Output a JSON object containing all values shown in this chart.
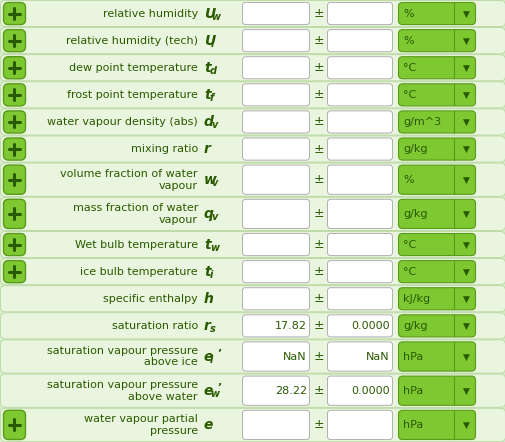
{
  "rows": [
    {
      "label": "relative humidity",
      "symbol": "U",
      "sub": "w",
      "prime": false,
      "val1": "",
      "val2": "",
      "unit": "%",
      "has_plus": true
    },
    {
      "label": "relative humidity (tech)",
      "symbol": "U",
      "sub": "i",
      "prime": false,
      "val1": "",
      "val2": "",
      "unit": "%",
      "has_plus": true
    },
    {
      "label": "dew point temperature",
      "symbol": "t",
      "sub": "d",
      "prime": false,
      "val1": "",
      "val2": "",
      "unit": "°C",
      "has_plus": true
    },
    {
      "label": "frost point temperature",
      "symbol": "t",
      "sub": "f",
      "prime": false,
      "val1": "",
      "val2": "",
      "unit": "°C",
      "has_plus": true
    },
    {
      "label": "water vapour density (abs)",
      "symbol": "d",
      "sub": "v",
      "prime": false,
      "val1": "",
      "val2": "",
      "unit": "g/m^3",
      "has_plus": true
    },
    {
      "label": "mixing ratio",
      "symbol": "r",
      "sub": "",
      "prime": false,
      "val1": "",
      "val2": "",
      "unit": "g/kg",
      "has_plus": true
    },
    {
      "label": "volume fraction of water\nvapour",
      "symbol": "w",
      "sub": "v",
      "prime": false,
      "val1": "",
      "val2": "",
      "unit": "%",
      "has_plus": true
    },
    {
      "label": "mass fraction of water\nvapour",
      "symbol": "q",
      "sub": "v",
      "prime": false,
      "val1": "",
      "val2": "",
      "unit": "g/kg",
      "has_plus": true
    },
    {
      "label": "Wet bulb temperature",
      "symbol": "t",
      "sub": "w",
      "prime": false,
      "val1": "",
      "val2": "",
      "unit": "°C",
      "has_plus": true
    },
    {
      "label": "ice bulb temperature",
      "symbol": "t",
      "sub": "i",
      "prime": false,
      "val1": "",
      "val2": "",
      "unit": "°C",
      "has_plus": true
    },
    {
      "label": "specific enthalpy",
      "symbol": "h",
      "sub": "",
      "prime": false,
      "val1": "",
      "val2": "",
      "unit": "kJ/kg",
      "has_plus": false
    },
    {
      "label": "saturation ratio",
      "symbol": "r",
      "sub": "s",
      "prime": false,
      "val1": "17.82",
      "val2": "0.0000",
      "unit": "g/kg",
      "has_plus": false
    },
    {
      "label": "saturation vapour pressure\nabove ice",
      "symbol": "e",
      "sub": "i",
      "prime": true,
      "val1": "NaN",
      "val2": "NaN",
      "unit": "hPa",
      "has_plus": false
    },
    {
      "label": "saturation vapour pressure\nabove water",
      "symbol": "e",
      "sub": "w",
      "prime": true,
      "val1": "28.22",
      "val2": "0.0000",
      "unit": "hPa",
      "has_plus": false
    },
    {
      "label": "water vapour partial\npressure",
      "symbol": "e",
      "sub": "",
      "prime": false,
      "val1": "",
      "val2": "",
      "unit": "hPa",
      "has_plus": true
    }
  ],
  "bg_outer": "#d8edcc",
  "bg_row": "#eaf5df",
  "green_btn": "#7ec832",
  "green_btn_dark": "#5a9a1a",
  "text_color": "#2a5a00",
  "white": "#ffffff",
  "input_border": "#b0b0b0",
  "dropdown_green": "#7ec832",
  "dropdown_border": "#5a9a1a"
}
